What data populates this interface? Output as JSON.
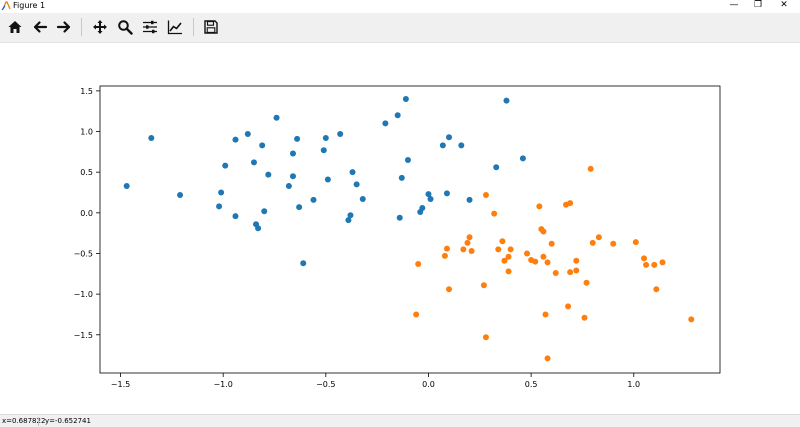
{
  "window": {
    "title": "Figure 1",
    "minimize_glyph": "—",
    "maximize_glyph": "❐",
    "close_glyph": "✕"
  },
  "toolbar": {
    "buttons": [
      {
        "name": "home",
        "icon": "home-icon"
      },
      {
        "name": "back",
        "icon": "back-arrow-icon"
      },
      {
        "name": "forward",
        "icon": "forward-arrow-icon"
      },
      {
        "name": "pan",
        "icon": "move-icon"
      },
      {
        "name": "zoom",
        "icon": "magnifier-icon"
      },
      {
        "name": "configure-subplots",
        "icon": "sliders-icon"
      },
      {
        "name": "edit-axis",
        "icon": "line-chart-icon"
      },
      {
        "name": "save",
        "icon": "floppy-disk-icon"
      }
    ]
  },
  "statusbar": {
    "x_readout": "x=0.687822",
    "y_readout": "y=-0.652741"
  },
  "chart_data": {
    "type": "scatter",
    "xlim": [
      -1.6,
      1.42
    ],
    "ylim": [
      -1.97,
      1.56
    ],
    "xticks": [
      -1.5,
      -1.0,
      -0.5,
      0.0,
      0.5,
      1.0
    ],
    "xtick_labels": [
      "−1.5",
      "−1.0",
      "−0.5",
      "0.0",
      "0.5",
      "1.0"
    ],
    "yticks": [
      1.5,
      1.0,
      0.5,
      0.0,
      -0.5,
      -1.0,
      -1.5
    ],
    "ytick_labels": [
      "1.5",
      "1.0",
      "0.5",
      "0.0",
      "−0.5",
      "−1.0",
      "−1.5"
    ],
    "grid": false,
    "series": [
      {
        "color": "#1f77b4",
        "points": [
          [
            -1.47,
            0.33
          ],
          [
            -1.35,
            0.92
          ],
          [
            -1.21,
            0.22
          ],
          [
            -1.02,
            0.08
          ],
          [
            -1.01,
            0.25
          ],
          [
            -0.99,
            0.58
          ],
          [
            -0.94,
            0.9
          ],
          [
            -0.94,
            -0.04
          ],
          [
            -0.88,
            0.97
          ],
          [
            -0.85,
            0.62
          ],
          [
            -0.84,
            -0.14
          ],
          [
            -0.83,
            -0.19
          ],
          [
            -0.81,
            0.83
          ],
          [
            -0.8,
            0.02
          ],
          [
            -0.78,
            0.47
          ],
          [
            -0.74,
            1.17
          ],
          [
            -0.68,
            0.33
          ],
          [
            -0.66,
            0.45
          ],
          [
            -0.66,
            0.73
          ],
          [
            -0.64,
            0.91
          ],
          [
            -0.63,
            0.07
          ],
          [
            -0.61,
            -0.62
          ],
          [
            -0.56,
            0.16
          ],
          [
            -0.51,
            0.77
          ],
          [
            -0.5,
            0.92
          ],
          [
            -0.49,
            0.41
          ],
          [
            -0.43,
            0.97
          ],
          [
            -0.39,
            -0.09
          ],
          [
            -0.38,
            -0.03
          ],
          [
            -0.37,
            0.5
          ],
          [
            -0.35,
            0.35
          ],
          [
            -0.32,
            0.17
          ],
          [
            -0.21,
            1.1
          ],
          [
            -0.15,
            1.2
          ],
          [
            -0.14,
            -0.06
          ],
          [
            -0.13,
            0.43
          ],
          [
            -0.11,
            1.4
          ],
          [
            -0.1,
            0.65
          ],
          [
            -0.04,
            0.01
          ],
          [
            -0.03,
            0.06
          ],
          [
            0.0,
            0.23
          ],
          [
            0.01,
            0.17
          ],
          [
            0.07,
            0.83
          ],
          [
            0.09,
            0.24
          ],
          [
            0.1,
            0.93
          ],
          [
            0.16,
            0.83
          ],
          [
            0.2,
            0.16
          ],
          [
            0.33,
            0.56
          ],
          [
            0.38,
            1.38
          ],
          [
            0.46,
            0.67
          ]
        ]
      },
      {
        "color": "#ff7f0e",
        "points": [
          [
            -0.06,
            -1.25
          ],
          [
            -0.05,
            -0.63
          ],
          [
            0.08,
            -0.53
          ],
          [
            0.09,
            -0.44
          ],
          [
            0.1,
            -0.94
          ],
          [
            0.17,
            -0.45
          ],
          [
            0.19,
            -0.37
          ],
          [
            0.2,
            -0.3
          ],
          [
            0.21,
            -0.47
          ],
          [
            0.27,
            -0.89
          ],
          [
            0.28,
            -1.53
          ],
          [
            0.28,
            0.22
          ],
          [
            0.32,
            -0.01
          ],
          [
            0.34,
            -0.45
          ],
          [
            0.36,
            -0.35
          ],
          [
            0.37,
            -0.59
          ],
          [
            0.39,
            -0.54
          ],
          [
            0.39,
            -0.72
          ],
          [
            0.4,
            -0.45
          ],
          [
            0.48,
            -0.5
          ],
          [
            0.5,
            -0.58
          ],
          [
            0.52,
            -0.6
          ],
          [
            0.54,
            0.08
          ],
          [
            0.55,
            -0.2
          ],
          [
            0.56,
            -0.23
          ],
          [
            0.56,
            -0.54
          ],
          [
            0.57,
            -1.25
          ],
          [
            0.58,
            -0.61
          ],
          [
            0.58,
            -1.79
          ],
          [
            0.6,
            -0.38
          ],
          [
            0.62,
            -0.74
          ],
          [
            0.67,
            0.1
          ],
          [
            0.68,
            -1.15
          ],
          [
            0.69,
            0.12
          ],
          [
            0.69,
            -0.73
          ],
          [
            0.72,
            -0.59
          ],
          [
            0.72,
            -0.71
          ],
          [
            0.76,
            -1.29
          ],
          [
            0.77,
            -0.86
          ],
          [
            0.79,
            0.54
          ],
          [
            0.8,
            -0.37
          ],
          [
            0.83,
            -0.3
          ],
          [
            0.9,
            -0.38
          ],
          [
            1.01,
            -0.36
          ],
          [
            1.05,
            -0.56
          ],
          [
            1.06,
            -0.64
          ],
          [
            1.1,
            -0.64
          ],
          [
            1.11,
            -0.94
          ],
          [
            1.14,
            -0.61
          ],
          [
            1.28,
            -1.31
          ]
        ]
      }
    ]
  }
}
